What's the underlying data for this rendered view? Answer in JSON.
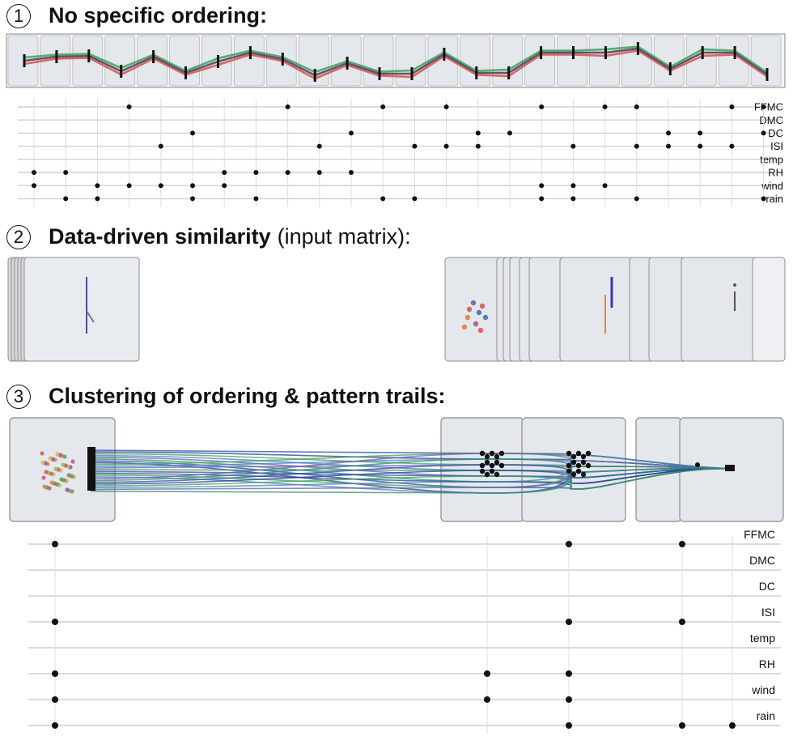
{
  "sections": [
    {
      "number": "1",
      "title_bold": "No specific ordering:",
      "title_normal": ""
    },
    {
      "number": "2",
      "title_bold": "Data-driven similarity",
      "title_normal": "(input matrix):"
    },
    {
      "number": "3",
      "title_bold": "Clustering of ordering & pattern trails:",
      "title_normal": ""
    }
  ],
  "attributes": [
    "FFMC",
    "DMC",
    "DC",
    "ISI",
    "temp",
    "RH",
    "wind",
    "rain"
  ],
  "colors": {
    "panel_fill": "#e4e7ec",
    "panel_border": "#9a9a9a",
    "matrix_line": "#cfcfcf",
    "dot": "#111111",
    "trail_blue": "#2a4fa8",
    "trail_green": "#3aa35a",
    "trail_red": "#d6504a",
    "trail_gray": "#555555"
  },
  "matrix1": {
    "columns": [
      [
        5,
        6
      ],
      [
        5,
        7
      ],
      [
        6,
        7
      ],
      [
        0,
        6
      ],
      [
        3,
        6
      ],
      [
        2,
        6,
        7
      ],
      [
        5,
        6
      ],
      [
        5,
        7
      ],
      [
        0,
        5
      ],
      [
        3,
        5
      ],
      [
        2,
        5
      ],
      [
        0,
        7
      ],
      [
        3,
        7
      ],
      [
        0,
        3
      ],
      [
        2,
        3
      ],
      [
        2
      ],
      [
        0,
        6,
        7
      ],
      [
        3,
        6,
        7
      ],
      [
        0,
        6
      ],
      [
        0,
        3,
        7
      ],
      [
        2,
        3
      ],
      [
        2,
        3
      ],
      [
        0,
        3
      ],
      [
        0,
        2,
        7
      ]
    ]
  },
  "matrix3": {
    "columns": [
      [
        0,
        3,
        5,
        6,
        7
      ],
      [
        5,
        6
      ],
      [
        0,
        3,
        5,
        6,
        7
      ],
      [
        0,
        3,
        7
      ],
      [
        7
      ]
    ]
  }
}
